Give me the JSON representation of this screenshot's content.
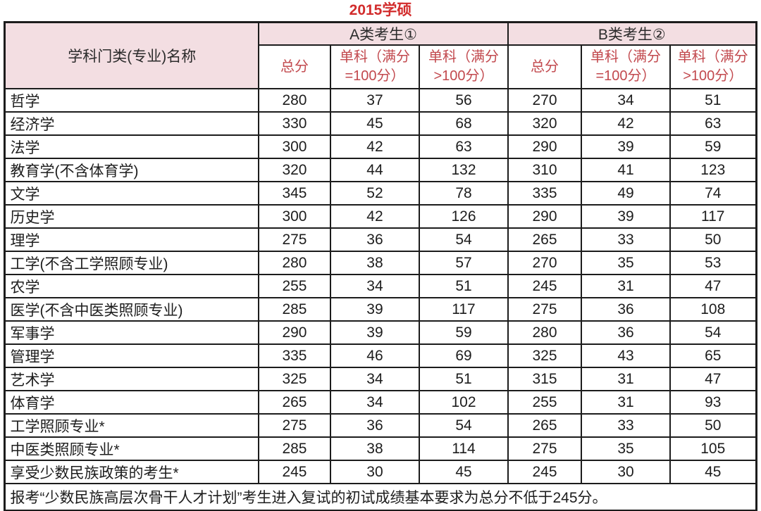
{
  "title": "2015学硕",
  "table": {
    "col1_header": "学科门类(专业)名称",
    "groups": [
      {
        "label": "A类考生①"
      },
      {
        "label": "B类考生②"
      }
    ],
    "sub_headers": [
      "总分",
      "单科（满分=100分）",
      "单科（满分>100分）"
    ],
    "rows": [
      {
        "name": "哲学",
        "a": [
          "280",
          "37",
          "56"
        ],
        "b": [
          "270",
          "34",
          "51"
        ]
      },
      {
        "name": "经济学",
        "a": [
          "330",
          "45",
          "68"
        ],
        "b": [
          "320",
          "42",
          "63"
        ]
      },
      {
        "name": "法学",
        "a": [
          "300",
          "42",
          "63"
        ],
        "b": [
          "290",
          "39",
          "59"
        ]
      },
      {
        "name": "教育学(不含体育学)",
        "a": [
          "320",
          "44",
          "132"
        ],
        "b": [
          "310",
          "41",
          "123"
        ]
      },
      {
        "name": "文学",
        "a": [
          "345",
          "52",
          "78"
        ],
        "b": [
          "335",
          "49",
          "74"
        ]
      },
      {
        "name": "历史学",
        "a": [
          "300",
          "42",
          "126"
        ],
        "b": [
          "290",
          "39",
          "117"
        ]
      },
      {
        "name": "理学",
        "a": [
          "275",
          "36",
          "54"
        ],
        "b": [
          "265",
          "33",
          "50"
        ]
      },
      {
        "name": "工学(不含工学照顾专业)",
        "a": [
          "280",
          "38",
          "57"
        ],
        "b": [
          "270",
          "35",
          "53"
        ]
      },
      {
        "name": "农学",
        "a": [
          "255",
          "34",
          "51"
        ],
        "b": [
          "245",
          "31",
          "47"
        ]
      },
      {
        "name": "医学(不含中医类照顾专业)",
        "a": [
          "285",
          "39",
          "117"
        ],
        "b": [
          "275",
          "36",
          "108"
        ]
      },
      {
        "name": "军事学",
        "a": [
          "290",
          "39",
          "59"
        ],
        "b": [
          "280",
          "36",
          "54"
        ]
      },
      {
        "name": "管理学",
        "a": [
          "335",
          "46",
          "69"
        ],
        "b": [
          "325",
          "43",
          "65"
        ]
      },
      {
        "name": "艺术学",
        "a": [
          "325",
          "34",
          "51"
        ],
        "b": [
          "315",
          "31",
          "47"
        ]
      },
      {
        "name": "体育学",
        "a": [
          "265",
          "34",
          "102"
        ],
        "b": [
          "255",
          "31",
          "93"
        ]
      },
      {
        "name": "工学照顾专业*",
        "a": [
          "275",
          "36",
          "54"
        ],
        "b": [
          "265",
          "33",
          "50"
        ]
      },
      {
        "name": "中医类照顾专业*",
        "a": [
          "285",
          "38",
          "114"
        ],
        "b": [
          "275",
          "35",
          "105"
        ]
      },
      {
        "name": "享受少数民族政策的考生*",
        "a": [
          "245",
          "30",
          "45"
        ],
        "b": [
          "245",
          "30",
          "45"
        ]
      }
    ],
    "footnote": "报考“少数民族高层次骨干人才计划”考生进入复试的初试成绩基本要求为总分不低于245分。",
    "colors": {
      "title_red": "#d22c2c",
      "subheader_red": "#c2494e",
      "header_pink": "#f3dee2",
      "border_black": "#1c1c1c",
      "text_black": "#1d1d1d"
    }
  }
}
